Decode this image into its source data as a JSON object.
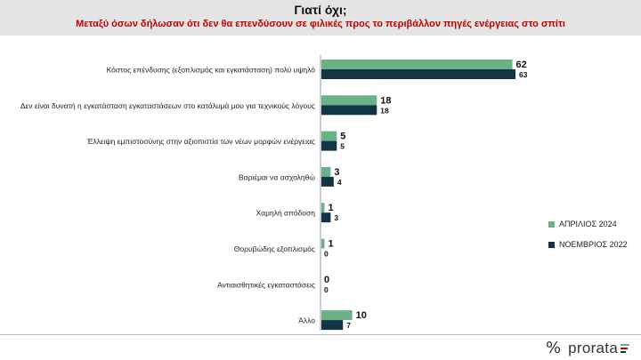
{
  "header": {
    "title": "Γιατί όχι;",
    "subtitle": "Μεταξύ όσων δήλωσαν ότι δεν θα επενδύσουν σε φιλικές προς το περιβάλλον πηγές ενέργειας στο σπίτι"
  },
  "chart_data": {
    "type": "bar",
    "orientation": "horizontal",
    "title": "Γιατί όχι;",
    "categories": [
      "Κόστος επένδυσης (εξοπλισμός και εγκατάσταση) πολύ υψηλό",
      "Δεν είναι δυνατή η εγκατάσταση εγκαταστάσεων στο κατάλυμά μου για τεχνικούς λόγους",
      "Έλλειψη εμπιστοσύνης στην αξιοπιστία των νέων μορφών ενέργειας",
      "Βαριέμαι να ασχοληθώ",
      "Χαμηλή απόδοση",
      "Θορυβώδης εξοπλισμός",
      "Αντιαισθητικές εγκαταστάσεις",
      "Άλλο"
    ],
    "series": [
      {
        "name": "ΑΠΡΙΛΙΟΣ 2024",
        "color": "#6ab187",
        "values": [
          62,
          18,
          5,
          3,
          1,
          1,
          0,
          10
        ]
      },
      {
        "name": "ΝΟΕΜΒΡΙΟΣ 2022",
        "color": "#123447",
        "values": [
          63,
          18,
          5,
          4,
          3,
          0,
          0,
          7
        ]
      }
    ],
    "xlim": [
      0,
      63
    ],
    "legend": "right"
  },
  "brand": {
    "mark": "%",
    "name": "prorata",
    "stripe_colors": [
      "#6ab187",
      "#c00000",
      "#123447"
    ]
  }
}
